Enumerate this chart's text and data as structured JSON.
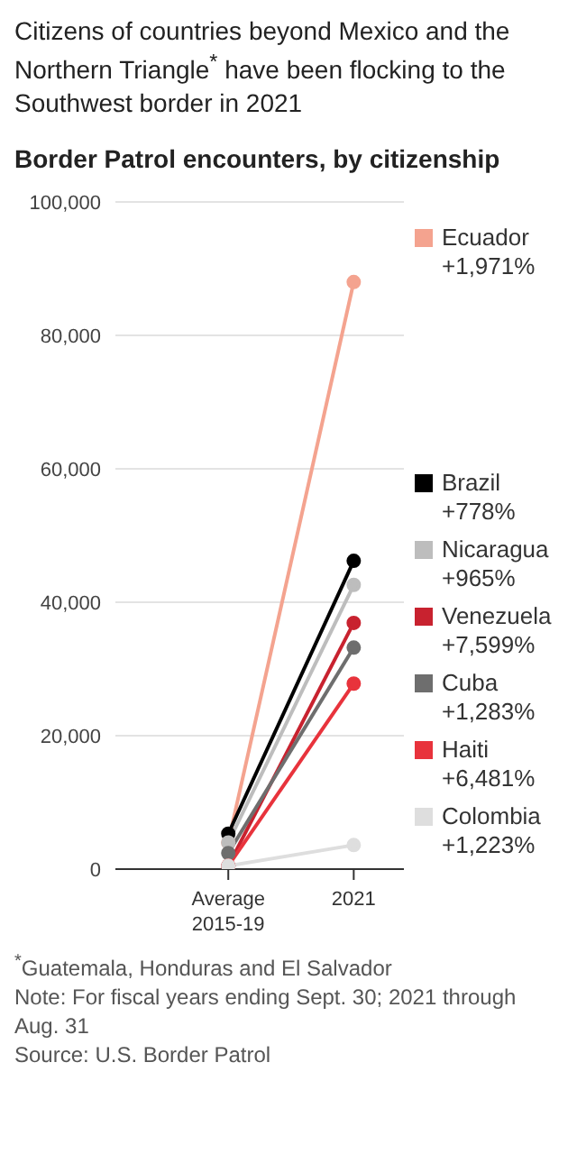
{
  "chart_data": {
    "type": "line",
    "title": "Citizens of countries beyond Mexico and the Northern Triangle$^{*}$ have been flocking to the Southwest border in 2021",
    "subtitle": "Border Patrol encounters, by citizenship",
    "categories": [
      "Average 2015-19",
      "2021"
    ],
    "series": [
      {
        "name": "Ecuador\n+1,971%",
        "color": "#f4a38f",
        "values": [
          4000,
          88000
        ]
      },
      {
        "name": "Brazil\n+778%",
        "color": "#000000",
        "values": [
          5300,
          46200
        ]
      },
      {
        "name": "Nicaragua\n+965%",
        "color": "#bdbdbd",
        "values": [
          4000,
          42600
        ]
      },
      {
        "name": "Venezuela\n+7,599%",
        "color": "#c8222f",
        "values": [
          500,
          36900
        ]
      },
      {
        "name": "Cuba\n+1,283%",
        "color": "#6e6e6e",
        "values": [
          2400,
          33200
        ]
      },
      {
        "name": "Haiti\n+6,481%",
        "color": "#e8333c",
        "values": [
          500,
          27800
        ]
      },
      {
        "name": "Colombia\n+1,223%",
        "color": "#dedede",
        "values": [
          500,
          3600
        ]
      }
    ],
    "ylim": [
      0,
      100000
    ],
    "yticks": [
      0,
      {
        "value": 20000,
        "label": "20,000"
      },
      {
        "value": 40000,
        "label": "40,000"
      },
      {
        "value": 60000,
        "label": "60,000"
      },
      {
        "value": 80000,
        "label": "80,000"
      },
      {
        "value": 100000,
        "label": "100,000"
      }
    ],
    "grid": "y",
    "legend": "right",
    "marker": "circle",
    "annotations": [
      "$^{*}$Guatemala, Honduras and El Salvador",
      "Note: For fiscal years ending Sept. 30; 2021 through Aug. 31",
      "Source: U.S. Border Patrol"
    ]
  }
}
